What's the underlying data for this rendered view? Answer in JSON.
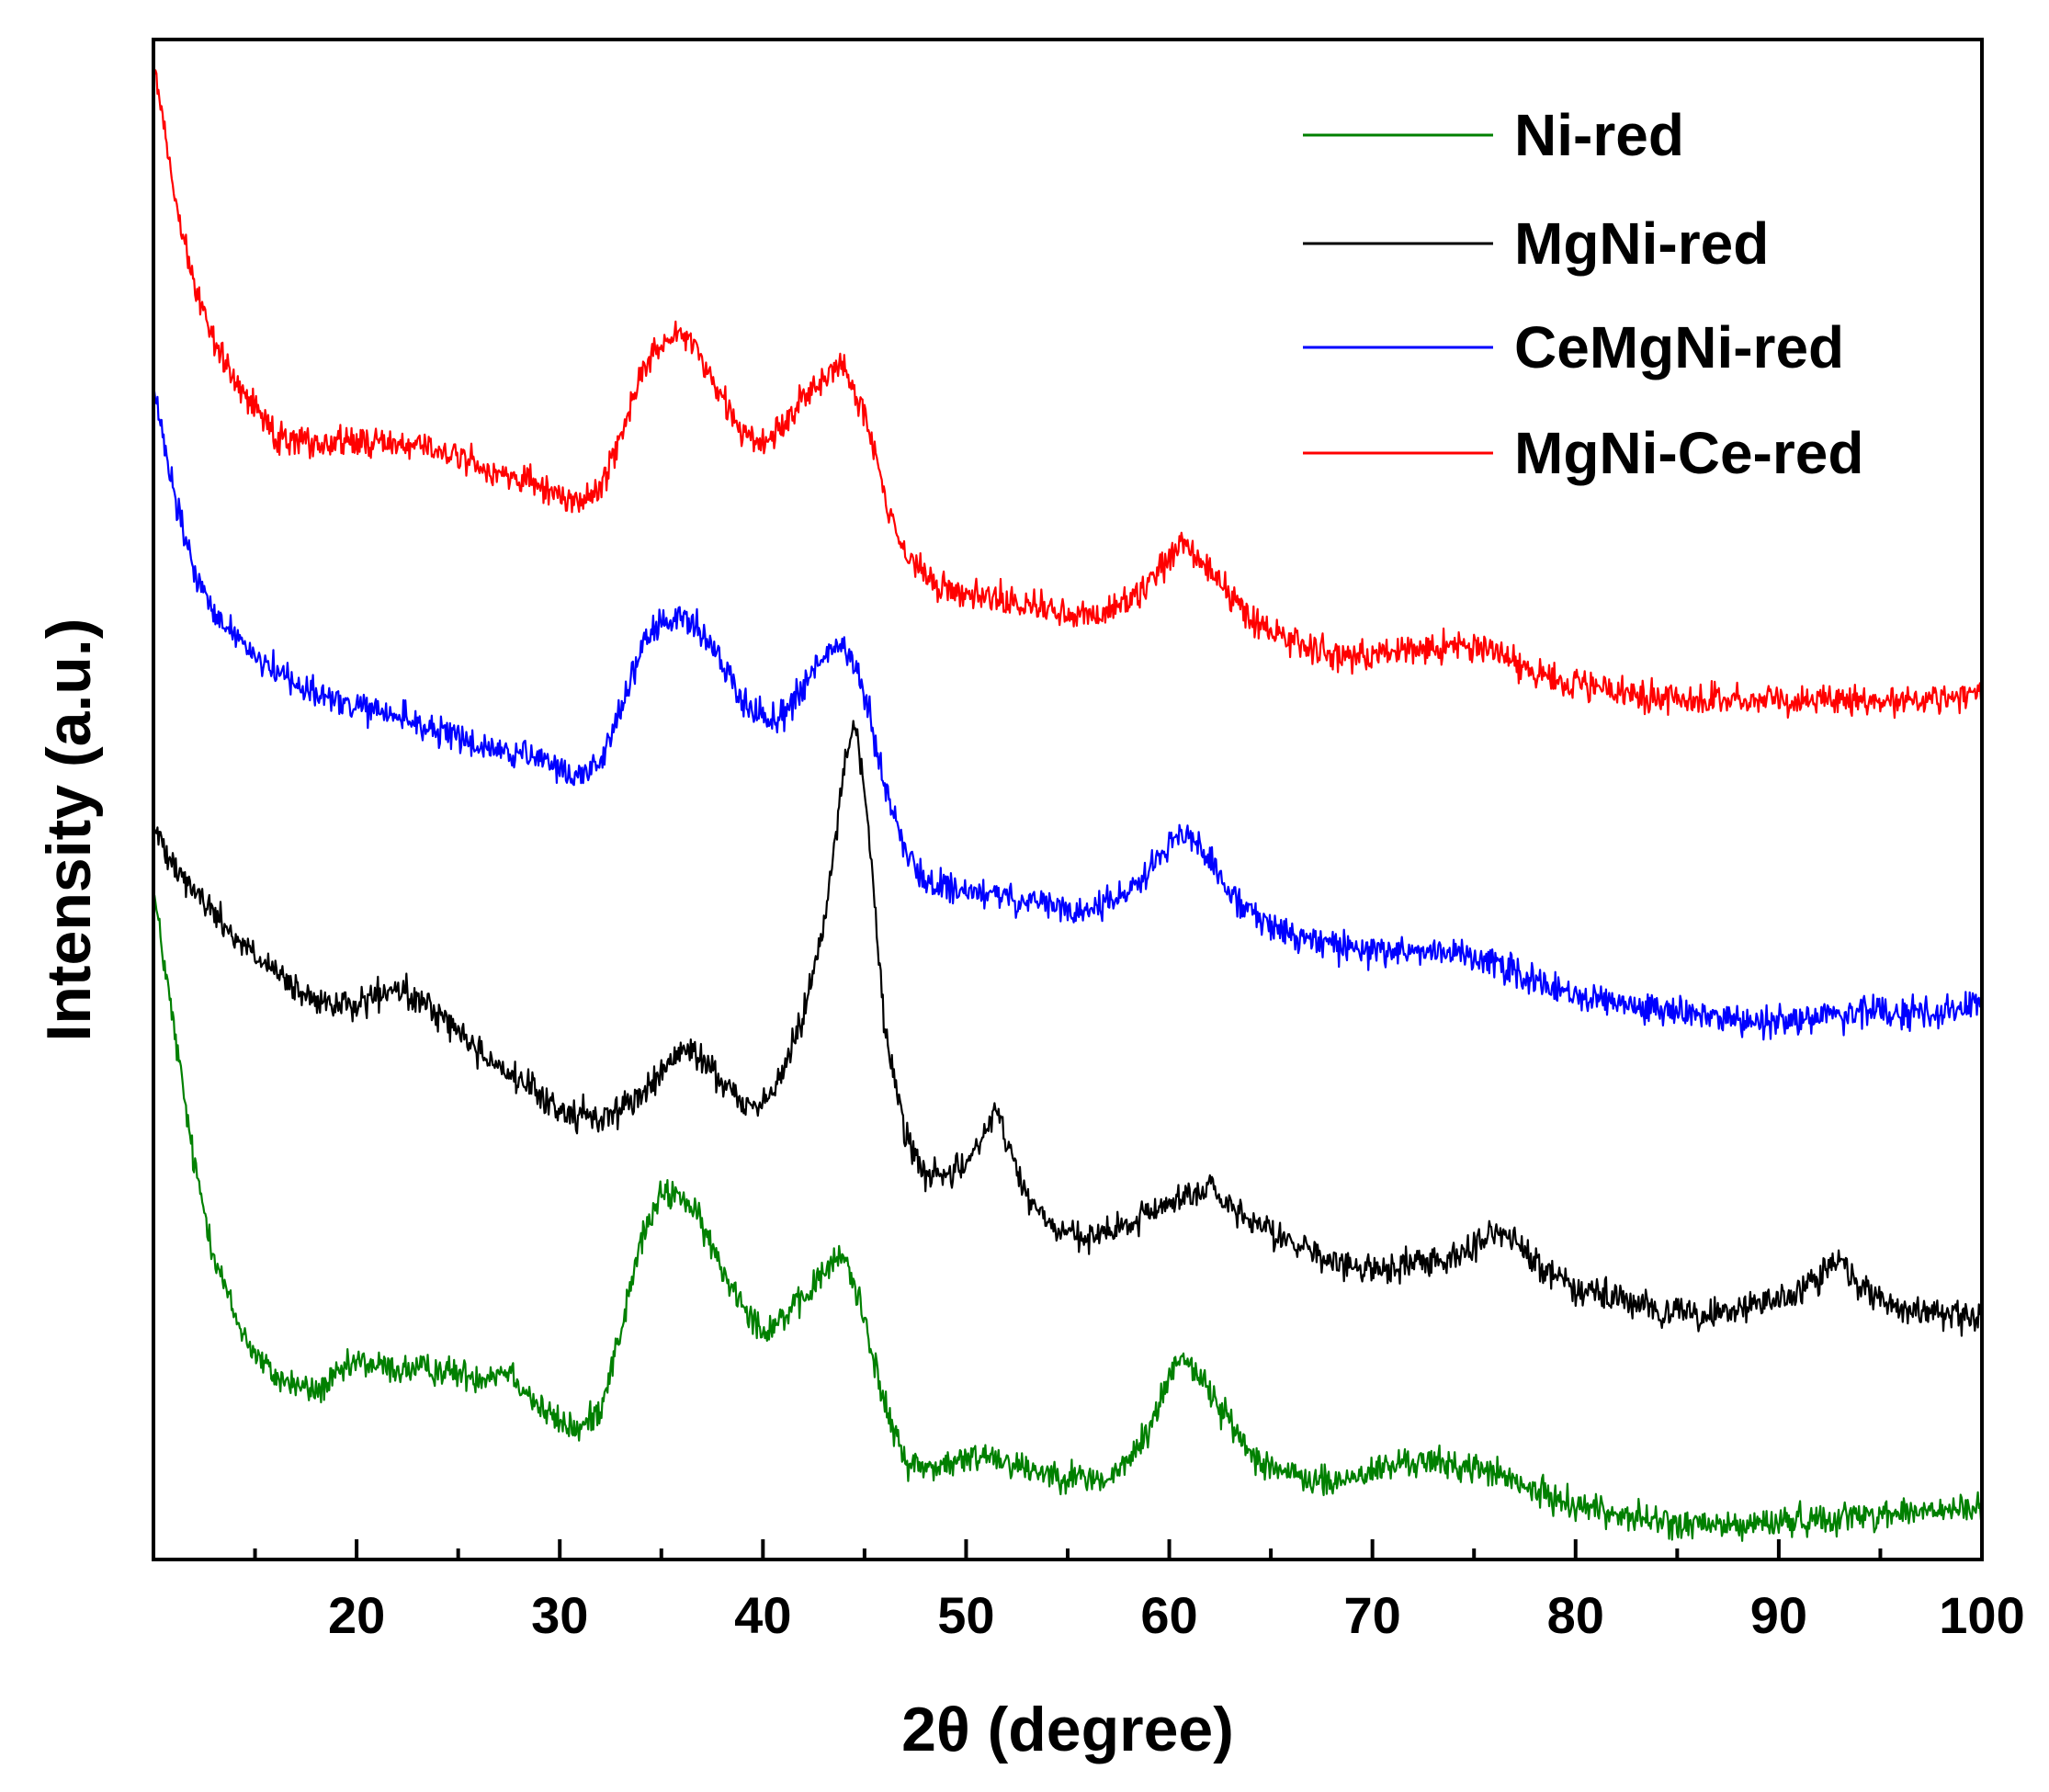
{
  "chart_data": {
    "type": "line",
    "title": "",
    "xlabel": "2θ (degree)",
    "ylabel": "Intensity (a.u.)",
    "xlim": [
      10,
      100
    ],
    "ylim": [
      0,
      100
    ],
    "yticks_shown": false,
    "x_major_ticks": [
      20,
      30,
      40,
      50,
      60,
      70,
      80,
      90,
      100
    ],
    "x_minor_ticks": [
      15,
      25,
      35,
      45,
      55,
      65,
      75,
      85,
      95
    ],
    "x_tick_labels": [
      "20",
      "30",
      "40",
      "50",
      "60",
      "70",
      "80",
      "90",
      "100"
    ],
    "legend_position": "top-right",
    "series": [
      {
        "name": "Ni-red",
        "color": "#008000",
        "x": [
          10,
          11,
          12,
          13,
          14,
          15,
          16,
          17,
          18,
          20,
          22,
          24,
          26,
          27.5,
          29,
          30,
          31,
          32,
          33,
          34,
          35,
          36,
          37,
          38,
          39,
          40,
          41,
          42,
          43,
          44,
          45,
          46,
          47,
          48,
          50,
          51,
          52,
          53,
          55,
          57,
          58,
          59,
          60,
          60.5,
          61,
          62,
          63,
          64,
          66,
          68,
          70,
          72,
          74,
          76,
          77,
          79,
          82,
          85,
          88,
          90,
          92,
          95,
          98,
          100
        ],
        "y": [
          44,
          35,
          26,
          20,
          16,
          13.5,
          12,
          11.5,
          11,
          13,
          12.5,
          12.5,
          12,
          12.5,
          10,
          9,
          8.5,
          10,
          15,
          21,
          24,
          24,
          22,
          19,
          17,
          15,
          16,
          17,
          19,
          20,
          16,
          10,
          6.5,
          6,
          6.5,
          7,
          6.5,
          6,
          5.5,
          5.2,
          6.5,
          8.5,
          12,
          13.5,
          13,
          11,
          9,
          7,
          5.5,
          5,
          5.8,
          6.5,
          6.2,
          5.8,
          5,
          4,
          3,
          2.3,
          2.2,
          2.5,
          2.7,
          3,
          3.2,
          3.3
        ]
      },
      {
        "name": "MgNi-red",
        "color": "#000000",
        "x": [
          10,
          11,
          12,
          13,
          14,
          16,
          18,
          20,
          22,
          24,
          26,
          28,
          30,
          32,
          34,
          35,
          36,
          37,
          38,
          39,
          40,
          41,
          42,
          43,
          43.5,
          44,
          44.5,
          45,
          45.5,
          46,
          47,
          48,
          49,
          50,
          51,
          51.5,
          52,
          53,
          54,
          56,
          58,
          60,
          62,
          63,
          64,
          66,
          68,
          70,
          72,
          74,
          76,
          77,
          78,
          80,
          82,
          84,
          86,
          88,
          90,
          92,
          93,
          94,
          96,
          98,
          100
        ],
        "y": [
          48,
          46,
          44,
          42.5,
          41,
          38.5,
          36.5,
          36.5,
          37.5,
          36,
          33.5,
          31.5,
          29.5,
          29,
          30.5,
          32,
          33.5,
          33,
          31.5,
          30,
          30,
          32,
          36,
          42,
          47,
          52,
          55,
          51,
          43,
          35,
          28,
          25.5,
          25,
          26,
          28.5,
          29.5,
          27.5,
          24,
          22,
          21,
          22,
          23.5,
          24.5,
          23,
          22,
          21,
          19.5,
          19,
          19.5,
          20,
          21.5,
          21,
          19.5,
          18,
          17,
          16.5,
          16,
          16.5,
          17,
          18.5,
          19.5,
          18,
          16.5,
          16,
          16
        ]
      },
      {
        "name": "CeMgNi-red",
        "color": "#0000ff",
        "x": [
          10,
          11,
          12,
          13,
          14,
          15,
          16,
          18,
          20,
          22,
          24,
          26,
          28,
          30,
          31,
          32,
          33,
          34,
          35,
          36,
          37,
          38,
          39,
          40,
          41,
          42,
          43,
          44,
          45,
          46,
          47,
          48,
          50,
          52,
          54,
          56,
          58,
          59,
          60,
          60.5,
          61,
          62,
          63,
          64,
          66,
          68,
          70,
          72,
          74,
          76,
          77,
          79,
          82,
          85,
          88,
          91,
          94,
          97,
          100
        ],
        "y": [
          77,
          70,
          65,
          62,
          61,
          59.5,
          58.5,
          57,
          56,
          55.5,
          54.5,
          53.5,
          53,
          52,
          51.5,
          52.5,
          56,
          60,
          61.5,
          62,
          61,
          59,
          56.5,
          55.5,
          55.5,
          57.5,
          59.5,
          60,
          57,
          51,
          46.5,
          44.5,
          44,
          43.5,
          43,
          42.5,
          44,
          45.5,
          47,
          48,
          47.5,
          46,
          44,
          42.5,
          41,
          40.5,
          40,
          40,
          40,
          39.5,
          38.5,
          37.5,
          36.5,
          36,
          35.5,
          35.5,
          36,
          36,
          36.5
        ]
      },
      {
        "name": "MgNi-Ce-red",
        "color": "#ff0000",
        "x": [
          10,
          11,
          12,
          13,
          14,
          15,
          16,
          18,
          20,
          22,
          24,
          26,
          28,
          30,
          31,
          32,
          33,
          34,
          35,
          36,
          37,
          38,
          39,
          40,
          41,
          42,
          43,
          44,
          45,
          46,
          47,
          48,
          50,
          52,
          54,
          56,
          58,
          59,
          60,
          60.5,
          61,
          62,
          63,
          64,
          66,
          68,
          70,
          72,
          74,
          76,
          77,
          79,
          82,
          85,
          88,
          91,
          94,
          97,
          100
        ],
        "y": [
          99,
          90,
          84,
          80,
          77.5,
          76,
          74,
          73.5,
          73.5,
          73.5,
          73,
          72,
          71,
          70,
          69.5,
          70.5,
          74,
          78,
          80,
          81,
          79,
          76.5,
          74,
          73.5,
          74.5,
          76.5,
          78,
          78.5,
          75.5,
          70,
          66,
          64.5,
          63.5,
          63,
          62.5,
          62,
          63,
          64.5,
          66,
          67,
          66.5,
          65,
          63.5,
          62,
          60.5,
          59.5,
          59.5,
          60,
          60,
          60,
          59,
          58,
          57,
          56.5,
          56.5,
          56.5,
          56.5,
          56.5,
          57
        ]
      }
    ]
  }
}
